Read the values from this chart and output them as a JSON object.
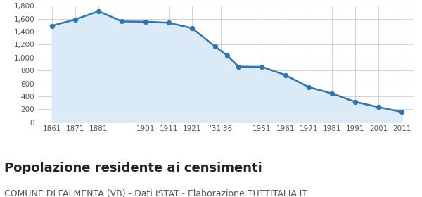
{
  "x_labels": [
    "1861",
    "1871",
    "1881",
    "",
    "1901",
    "1911",
    "1921",
    "'31",
    "'36",
    "",
    "1951",
    "1961",
    "1971",
    "1981",
    "1991",
    "2001",
    "2011"
  ],
  "x_positions": [
    1861,
    1871,
    1881,
    1891,
    1901,
    1911,
    1921,
    1931,
    1936,
    1941,
    1951,
    1961,
    1971,
    1981,
    1991,
    2001,
    2011
  ],
  "y_values": [
    1493,
    1591,
    1718,
    1560,
    1556,
    1540,
    1456,
    1170,
    1035,
    860,
    856,
    730,
    543,
    444,
    313,
    232,
    157
  ],
  "line_color": "#2e75b6",
  "fill_color": "#daeaf7",
  "marker_color": "#1f5fa6",
  "ylim": [
    0,
    1800
  ],
  "yticks": [
    0,
    200,
    400,
    600,
    800,
    1000,
    1200,
    1400,
    1600,
    1800
  ],
  "ytick_labels": [
    "0",
    "200",
    "400",
    "600",
    "800",
    "1,000",
    "1,200",
    "1,400",
    "1,600",
    "1,800"
  ],
  "xtick_labels": [
    "1861",
    "1871",
    "1881",
    "1901",
    "1911",
    "1921",
    "'31'36",
    "1951",
    "1961",
    "1971",
    "1981",
    "1991",
    "2001",
    "2011"
  ],
  "xtick_positions": [
    1861,
    1871,
    1881,
    1901,
    1911,
    1921,
    1933.5,
    1951,
    1961,
    1971,
    1981,
    1991,
    2001,
    2011
  ],
  "title": "Popolazione residente ai censimenti",
  "subtitle": "COMUNE DI FALMENTA (VB) - Dati ISTAT - Elaborazione TUTTITALIA.IT",
  "title_fontsize": 13,
  "subtitle_fontsize": 9,
  "grid_color": "#cccccc",
  "background_color": "#ffffff"
}
